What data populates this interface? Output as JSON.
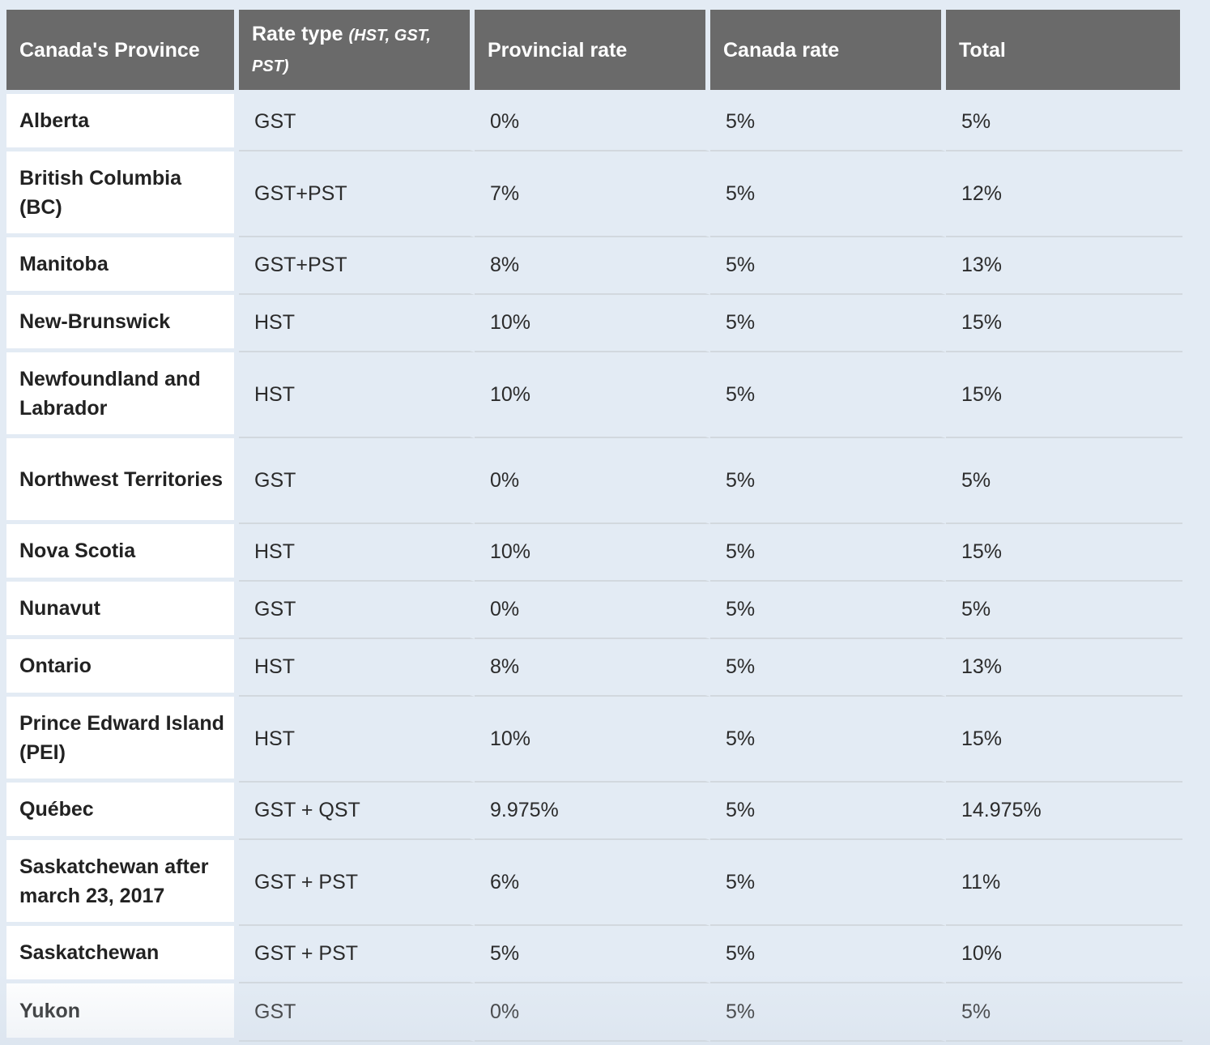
{
  "table": {
    "headers": {
      "province": "Canada's Province",
      "rate_type": "Rate type",
      "rate_type_sub": "(HST, GST, PST)",
      "provincial_rate": "Provincial rate",
      "canada_rate": "Canada rate",
      "total": "Total"
    },
    "rows": [
      {
        "province": "Alberta",
        "rate_type": "GST",
        "provincial_rate": "0%",
        "canada_rate": "5%",
        "total": "5%"
      },
      {
        "province": "British Columbia (BC)",
        "rate_type": "GST+PST",
        "provincial_rate": "7%",
        "canada_rate": "5%",
        "total": "12%"
      },
      {
        "province": "Manitoba",
        "rate_type": "GST+PST",
        "provincial_rate": "8%",
        "canada_rate": "5%",
        "total": "13%"
      },
      {
        "province": "New-Brunswick",
        "rate_type": "HST",
        "provincial_rate": "10%",
        "canada_rate": "5%",
        "total": "15%"
      },
      {
        "province": "Newfoundland and Labrador",
        "rate_type": "HST",
        "provincial_rate": "10%",
        "canada_rate": "5%",
        "total": "15%"
      },
      {
        "province": "Northwest Territories",
        "rate_type": "GST",
        "provincial_rate": "0%",
        "canada_rate": "5%",
        "total": "5%"
      },
      {
        "province": "Nova Scotia",
        "rate_type": "HST",
        "provincial_rate": "10%",
        "canada_rate": "5%",
        "total": "15%"
      },
      {
        "province": "Nunavut",
        "rate_type": "GST",
        "provincial_rate": "0%",
        "canada_rate": "5%",
        "total": "5%"
      },
      {
        "province": "Ontario",
        "rate_type": "HST",
        "provincial_rate": "8%",
        "canada_rate": "5%",
        "total": "13%"
      },
      {
        "province": "Prince Edward Island (PEI)",
        "rate_type": "HST",
        "provincial_rate": "10%",
        "canada_rate": "5%",
        "total": "15%"
      },
      {
        "province": "Québec",
        "rate_type": "GST + QST",
        "provincial_rate": "9.975%",
        "canada_rate": "5%",
        "total": "14.975%"
      },
      {
        "province": "Saskatchewan after march 23, 2017",
        "rate_type": "GST + PST",
        "provincial_rate": "6%",
        "canada_rate": "5%",
        "total": "11%"
      },
      {
        "province": "Saskatchewan",
        "rate_type": "GST + PST",
        "provincial_rate": "5%",
        "canada_rate": "5%",
        "total": "10%"
      },
      {
        "province": "Yukon",
        "rate_type": "GST",
        "provincial_rate": "0%",
        "canada_rate": "5%",
        "total": "5%"
      }
    ]
  },
  "colors": {
    "header_bg": "#6a6a6a",
    "header_text": "#ffffff",
    "page_bg": "#e3ebf4",
    "province_cell_bg": "#ffffff"
  }
}
